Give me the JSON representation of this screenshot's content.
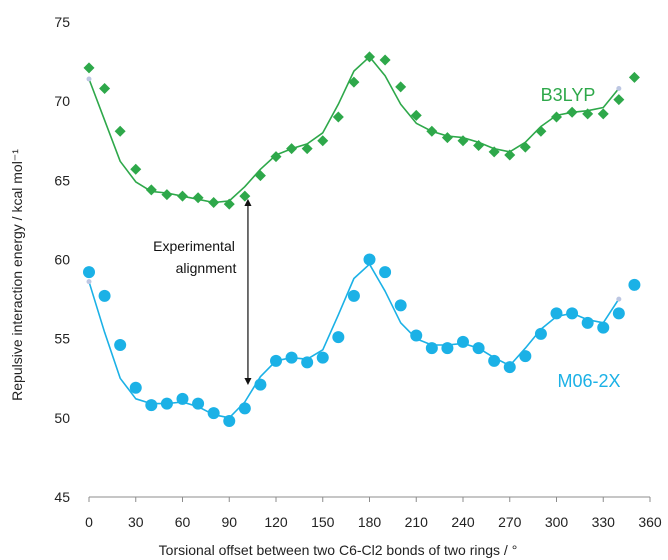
{
  "chart_data": {
    "type": "scatter",
    "xlabel": "Torsional offset between two C6-Cl2 bonds of two rings / °",
    "ylabel": "Repulsive interaction energy / kcal mol⁻¹",
    "xlim": [
      0,
      360
    ],
    "ylim": [
      45,
      75
    ],
    "xticks": [
      "0",
      "30",
      "60",
      "90",
      "120",
      "150",
      "180",
      "210",
      "240",
      "270",
      "300",
      "330",
      "360"
    ],
    "yticks": [
      "45",
      "50",
      "55",
      "60",
      "65",
      "70",
      "75"
    ],
    "grid": false,
    "series": [
      {
        "name": "B3LYP",
        "color": "#2ea84a",
        "marker": "diamond",
        "points": {
          "x": [
            0,
            10,
            20,
            30,
            40,
            50,
            60,
            70,
            80,
            90,
            100,
            110,
            120,
            130,
            140,
            150,
            160,
            170,
            180,
            190,
            200,
            210,
            220,
            230,
            240,
            250,
            260,
            270,
            280,
            290,
            300,
            310,
            320,
            330,
            340,
            350
          ],
          "y": [
            72.1,
            70.8,
            68.1,
            65.7,
            64.4,
            64.1,
            64.0,
            63.9,
            63.6,
            63.5,
            64.0,
            65.3,
            66.5,
            67.0,
            67.0,
            67.5,
            69.0,
            71.2,
            72.8,
            72.6,
            70.9,
            69.1,
            68.1,
            67.7,
            67.5,
            67.2,
            66.8,
            66.6,
            67.1,
            68.1,
            69.0,
            69.3,
            69.2,
            69.2,
            70.1,
            71.5
          ]
        },
        "fit": {
          "x": [
            0,
            10,
            20,
            30,
            40,
            50,
            60,
            70,
            80,
            90,
            100,
            110,
            120,
            130,
            140,
            150,
            160,
            170,
            180,
            190,
            200,
            210,
            220,
            230,
            240,
            250,
            260,
            270,
            280,
            290,
            300,
            310,
            320,
            330,
            340
          ],
          "y": [
            71.4,
            68.8,
            66.2,
            64.9,
            64.3,
            64.2,
            64.0,
            63.8,
            63.6,
            63.7,
            64.6,
            65.7,
            66.6,
            67.0,
            67.3,
            68.0,
            69.8,
            71.9,
            72.8,
            71.6,
            69.8,
            68.6,
            68.1,
            67.8,
            67.7,
            67.4,
            67.0,
            66.8,
            67.4,
            68.4,
            69.1,
            69.3,
            69.4,
            69.6,
            70.8
          ]
        }
      },
      {
        "name": "M06-2X",
        "color": "#1bb1e6",
        "marker": "circle",
        "points": {
          "x": [
            0,
            10,
            20,
            30,
            40,
            50,
            60,
            70,
            80,
            90,
            100,
            110,
            120,
            130,
            140,
            150,
            160,
            170,
            180,
            190,
            200,
            210,
            220,
            230,
            240,
            250,
            260,
            270,
            280,
            290,
            300,
            310,
            320,
            330,
            340,
            350
          ],
          "y": [
            59.2,
            57.7,
            54.6,
            51.9,
            50.8,
            50.9,
            51.2,
            50.9,
            50.3,
            49.8,
            50.6,
            52.1,
            53.6,
            53.8,
            53.5,
            53.8,
            55.1,
            57.7,
            60.0,
            59.2,
            57.1,
            55.2,
            54.4,
            54.4,
            54.8,
            54.4,
            53.6,
            53.2,
            53.9,
            55.3,
            56.6,
            56.6,
            56.0,
            55.7,
            56.6,
            58.4
          ]
        },
        "fit": {
          "x": [
            0,
            10,
            20,
            30,
            40,
            50,
            60,
            70,
            80,
            90,
            100,
            110,
            120,
            130,
            140,
            150,
            160,
            170,
            180,
            190,
            200,
            210,
            220,
            230,
            240,
            250,
            260,
            270,
            280,
            290,
            300,
            310,
            320,
            330,
            340
          ],
          "y": [
            58.6,
            55.4,
            52.5,
            51.2,
            50.9,
            50.9,
            51.0,
            50.7,
            50.2,
            50.0,
            51.0,
            52.6,
            53.6,
            53.8,
            53.7,
            54.3,
            56.5,
            58.8,
            59.7,
            58.0,
            56.0,
            55.0,
            54.6,
            54.6,
            54.7,
            54.4,
            53.8,
            53.3,
            54.4,
            55.6,
            56.4,
            56.6,
            56.2,
            56.0,
            57.5
          ]
        }
      }
    ],
    "annotations": [
      {
        "text": "Experimental alignment",
        "lines": [
          "Experimental",
          "alignment"
        ],
        "arrow": {
          "x": 102,
          "y_from": 63.6,
          "y_to": 52.3
        }
      }
    ]
  }
}
